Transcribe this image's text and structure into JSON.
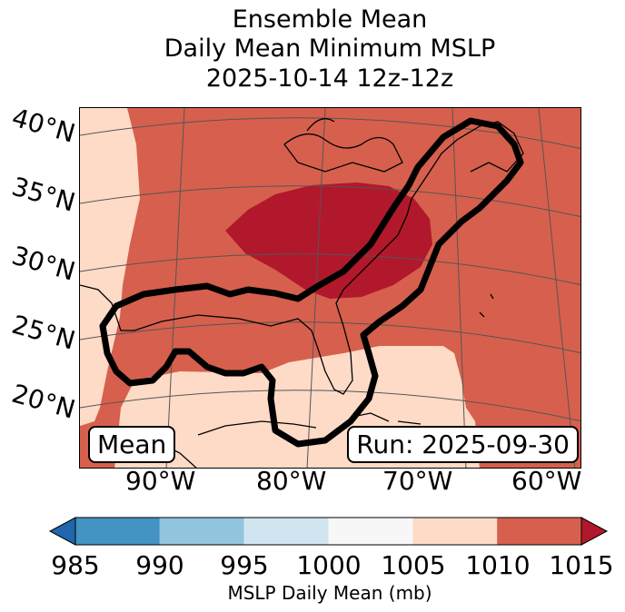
{
  "title": {
    "line1": "Ensemble Mean",
    "line2": "Daily Mean Minimum MSLP",
    "line3": "2025-10-14 12z-12z"
  },
  "map": {
    "lat_labels": [
      "40°N",
      "35°N",
      "30°N",
      "25°N",
      "20°N"
    ],
    "lon_labels": [
      "90°W",
      "80°W",
      "70°W",
      "60°W"
    ],
    "stat_label": "Mean",
    "run_label": "Run: 2025-09-30",
    "colors": {
      "land_1005_1010": "#fddbc7",
      "1010_1015": "#d6604d",
      "over_1015": "#b2182b",
      "contour": "#000000"
    }
  },
  "colorbar": {
    "ticks": [
      "985",
      "990",
      "995",
      "1000",
      "1005",
      "1010",
      "1015"
    ],
    "bins": [
      {
        "range": "<985",
        "color": "#2166ac"
      },
      {
        "range": "985-990",
        "color": "#4393c3"
      },
      {
        "range": "990-995",
        "color": "#92c5de"
      },
      {
        "range": "995-1000",
        "color": "#d1e5f0"
      },
      {
        "range": "1000-1005",
        "color": "#f7f7f7"
      },
      {
        "range": "1005-1010",
        "color": "#fddbc7"
      },
      {
        "range": "1010-1015",
        "color": "#d6604d"
      },
      {
        "range": ">1015",
        "color": "#b2182b"
      }
    ],
    "label": "MSLP Daily Mean (mb)"
  }
}
